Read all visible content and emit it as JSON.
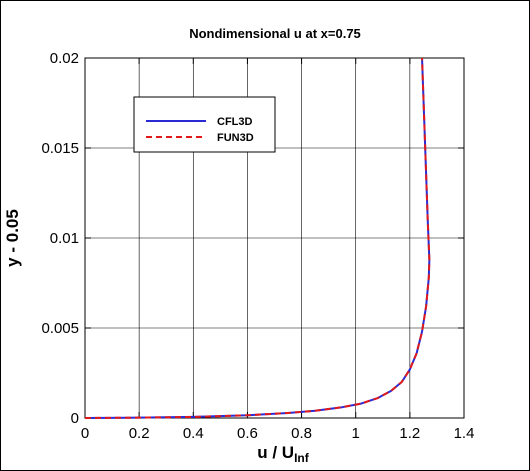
{
  "chart_data": {
    "type": "line",
    "title": "Nondimensional u at x=0.75",
    "xlabel": "u / U",
    "xlabel_subscript": "Inf",
    "ylabel": "y - 0.05",
    "xlim": [
      0,
      1.4
    ],
    "ylim": [
      0,
      0.02
    ],
    "xticks": [
      "0",
      "0.2",
      "0.4",
      "0.6",
      "0.8",
      "1",
      "1.2",
      "1.4"
    ],
    "xtick_values": [
      0,
      0.2,
      0.4,
      0.6,
      0.8,
      1.0,
      1.2,
      1.4
    ],
    "yticks": [
      "0",
      "0.005",
      "0.01",
      "0.015",
      "0.02"
    ],
    "ytick_values": [
      0,
      0.005,
      0.01,
      0.015,
      0.02
    ],
    "grid": true,
    "legend_position": "top-left",
    "series": [
      {
        "name": "CFL3D",
        "color": "#2b2bd6",
        "style": "solid",
        "x": [
          0,
          0.2,
          0.4,
          0.6,
          0.75,
          0.85,
          0.95,
          1.02,
          1.08,
          1.13,
          1.17,
          1.2,
          1.225,
          1.245,
          1.26,
          1.27,
          1.272,
          1.266,
          1.259,
          1.252,
          1.245
        ],
        "y": [
          0,
          2e-05,
          6e-05,
          0.00015,
          0.00028,
          0.0004,
          0.0006,
          0.0008,
          0.0011,
          0.0015,
          0.002,
          0.0027,
          0.0036,
          0.0048,
          0.0062,
          0.0078,
          0.0088,
          0.011,
          0.014,
          0.017,
          0.02
        ]
      },
      {
        "name": "FUN3D",
        "color": "#e01a1a",
        "style": "dashed",
        "x": [
          0,
          0.2,
          0.4,
          0.6,
          0.75,
          0.85,
          0.95,
          1.02,
          1.08,
          1.13,
          1.17,
          1.2,
          1.225,
          1.245,
          1.26,
          1.27,
          1.272,
          1.266,
          1.259,
          1.252,
          1.245
        ],
        "y": [
          0,
          2e-05,
          6e-05,
          0.00015,
          0.00028,
          0.0004,
          0.0006,
          0.0008,
          0.0011,
          0.0015,
          0.002,
          0.0027,
          0.0036,
          0.0048,
          0.0062,
          0.0078,
          0.0088,
          0.011,
          0.014,
          0.017,
          0.02
        ]
      }
    ]
  }
}
